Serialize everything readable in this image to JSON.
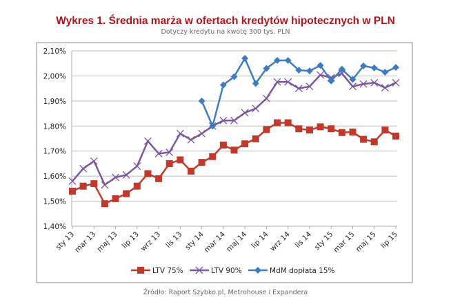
{
  "chart_data": {
    "type": "line",
    "title": "Wykres 1. Średnia marża w ofertach kredytów hipotecznych w PLN",
    "subtitle": "Dotyczy kredytu na kwotę 300 tys. PLN",
    "source": "Źródło: Raport Szybko.pl, Metrohouse i Expandera",
    "xlabel": "",
    "ylabel": "",
    "ylim": [
      1.4,
      2.1
    ],
    "yticks": [
      "1,40%",
      "1,50%",
      "1,60%",
      "1,70%",
      "1,80%",
      "1,90%",
      "2,00%",
      "2,10%"
    ],
    "x_tick_labels": [
      "sty 13",
      "mar 13",
      "maj 13",
      "lip 13",
      "wrz 13",
      "lis 13",
      "sty 14",
      "mar 14",
      "maj 14",
      "lip 14",
      "wrz 14",
      "lis 14",
      "sty 15",
      "mar 15",
      "maj 15",
      "lip 15"
    ],
    "x": [
      "sty 13",
      "lut 13",
      "mar 13",
      "kwi 13",
      "maj 13",
      "cze 13",
      "lip 13",
      "sie 13",
      "wrz 13",
      "paź 13",
      "lis 13",
      "gru 13",
      "sty 14",
      "lut 14",
      "mar 14",
      "kwi 14",
      "maj 14",
      "cze 14",
      "lip 14",
      "sie 14",
      "wrz 14",
      "paź 14",
      "lis 14",
      "gru 14",
      "sty 15",
      "lut 15",
      "mar 15",
      "kwi 15",
      "maj 15",
      "cze 15",
      "lip 15"
    ],
    "grid": "horizontal",
    "legend": "bottom",
    "series": [
      {
        "name": "LTV 75%",
        "color": "#c0392b",
        "marker": "square",
        "values": [
          1.54,
          1.56,
          1.57,
          1.49,
          1.51,
          1.53,
          1.56,
          1.61,
          1.59,
          1.65,
          1.665,
          1.62,
          1.655,
          1.678,
          1.724,
          1.704,
          1.729,
          1.749,
          1.786,
          1.813,
          1.813,
          1.789,
          1.784,
          1.797,
          1.789,
          1.774,
          1.776,
          1.747,
          1.737,
          1.784,
          1.76
        ]
      },
      {
        "name": "LTV 90%",
        "color": "#7d55a0",
        "marker": "x",
        "values": [
          1.58,
          1.63,
          1.66,
          1.565,
          1.595,
          1.605,
          1.64,
          1.74,
          1.69,
          1.695,
          1.77,
          1.745,
          1.77,
          1.8,
          1.822,
          1.822,
          1.853,
          1.87,
          1.91,
          1.976,
          1.976,
          1.95,
          1.958,
          2.004,
          1.993,
          2.01,
          1.958,
          1.968,
          1.973,
          1.953,
          1.973
        ]
      },
      {
        "name": "MdM dopłata 15%",
        "color": "#3d7cc0",
        "marker": "diamond",
        "values": [
          null,
          null,
          null,
          null,
          null,
          null,
          null,
          null,
          null,
          null,
          null,
          null,
          1.9,
          1.8,
          1.964,
          1.997,
          2.07,
          1.97,
          2.03,
          2.062,
          2.062,
          2.023,
          2.02,
          2.042,
          1.98,
          2.027,
          1.986,
          2.04,
          2.032,
          2.015,
          2.034
        ]
      }
    ]
  }
}
